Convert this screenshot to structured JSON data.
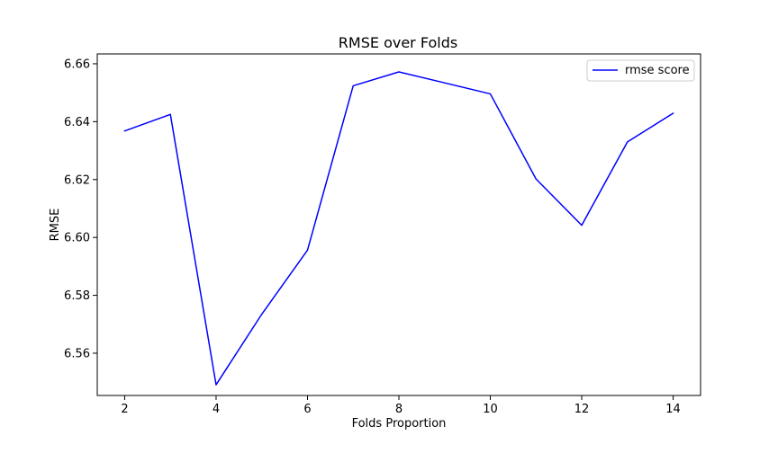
{
  "chart_data": {
    "type": "line",
    "title": "RMSE over Folds",
    "xlabel": "Folds Proportion",
    "ylabel": "RMSE",
    "xlim": [
      1.4,
      14.6
    ],
    "ylim": [
      6.5454,
      6.6634
    ],
    "xticks": [
      2,
      4,
      6,
      8,
      10,
      12,
      14
    ],
    "xtick_labels": [
      "2",
      "4",
      "6",
      "8",
      "10",
      "12",
      "14"
    ],
    "yticks": [
      6.56,
      6.58,
      6.6,
      6.62,
      6.64,
      6.66
    ],
    "ytick_labels": [
      "6.56",
      "6.58",
      "6.60",
      "6.62",
      "6.64",
      "6.66"
    ],
    "grid": false,
    "legend_position": "upper right",
    "series": [
      {
        "name": "rmse score",
        "color": "#0000ff",
        "x": [
          2,
          3,
          4,
          5,
          6,
          7,
          8,
          9,
          10,
          11,
          12,
          13,
          14
        ],
        "y": [
          6.6368,
          6.6425,
          6.5491,
          6.5735,
          6.5956,
          6.6524,
          6.6572,
          6.6534,
          6.6496,
          6.6202,
          6.6042,
          6.633,
          6.6429
        ]
      }
    ]
  }
}
